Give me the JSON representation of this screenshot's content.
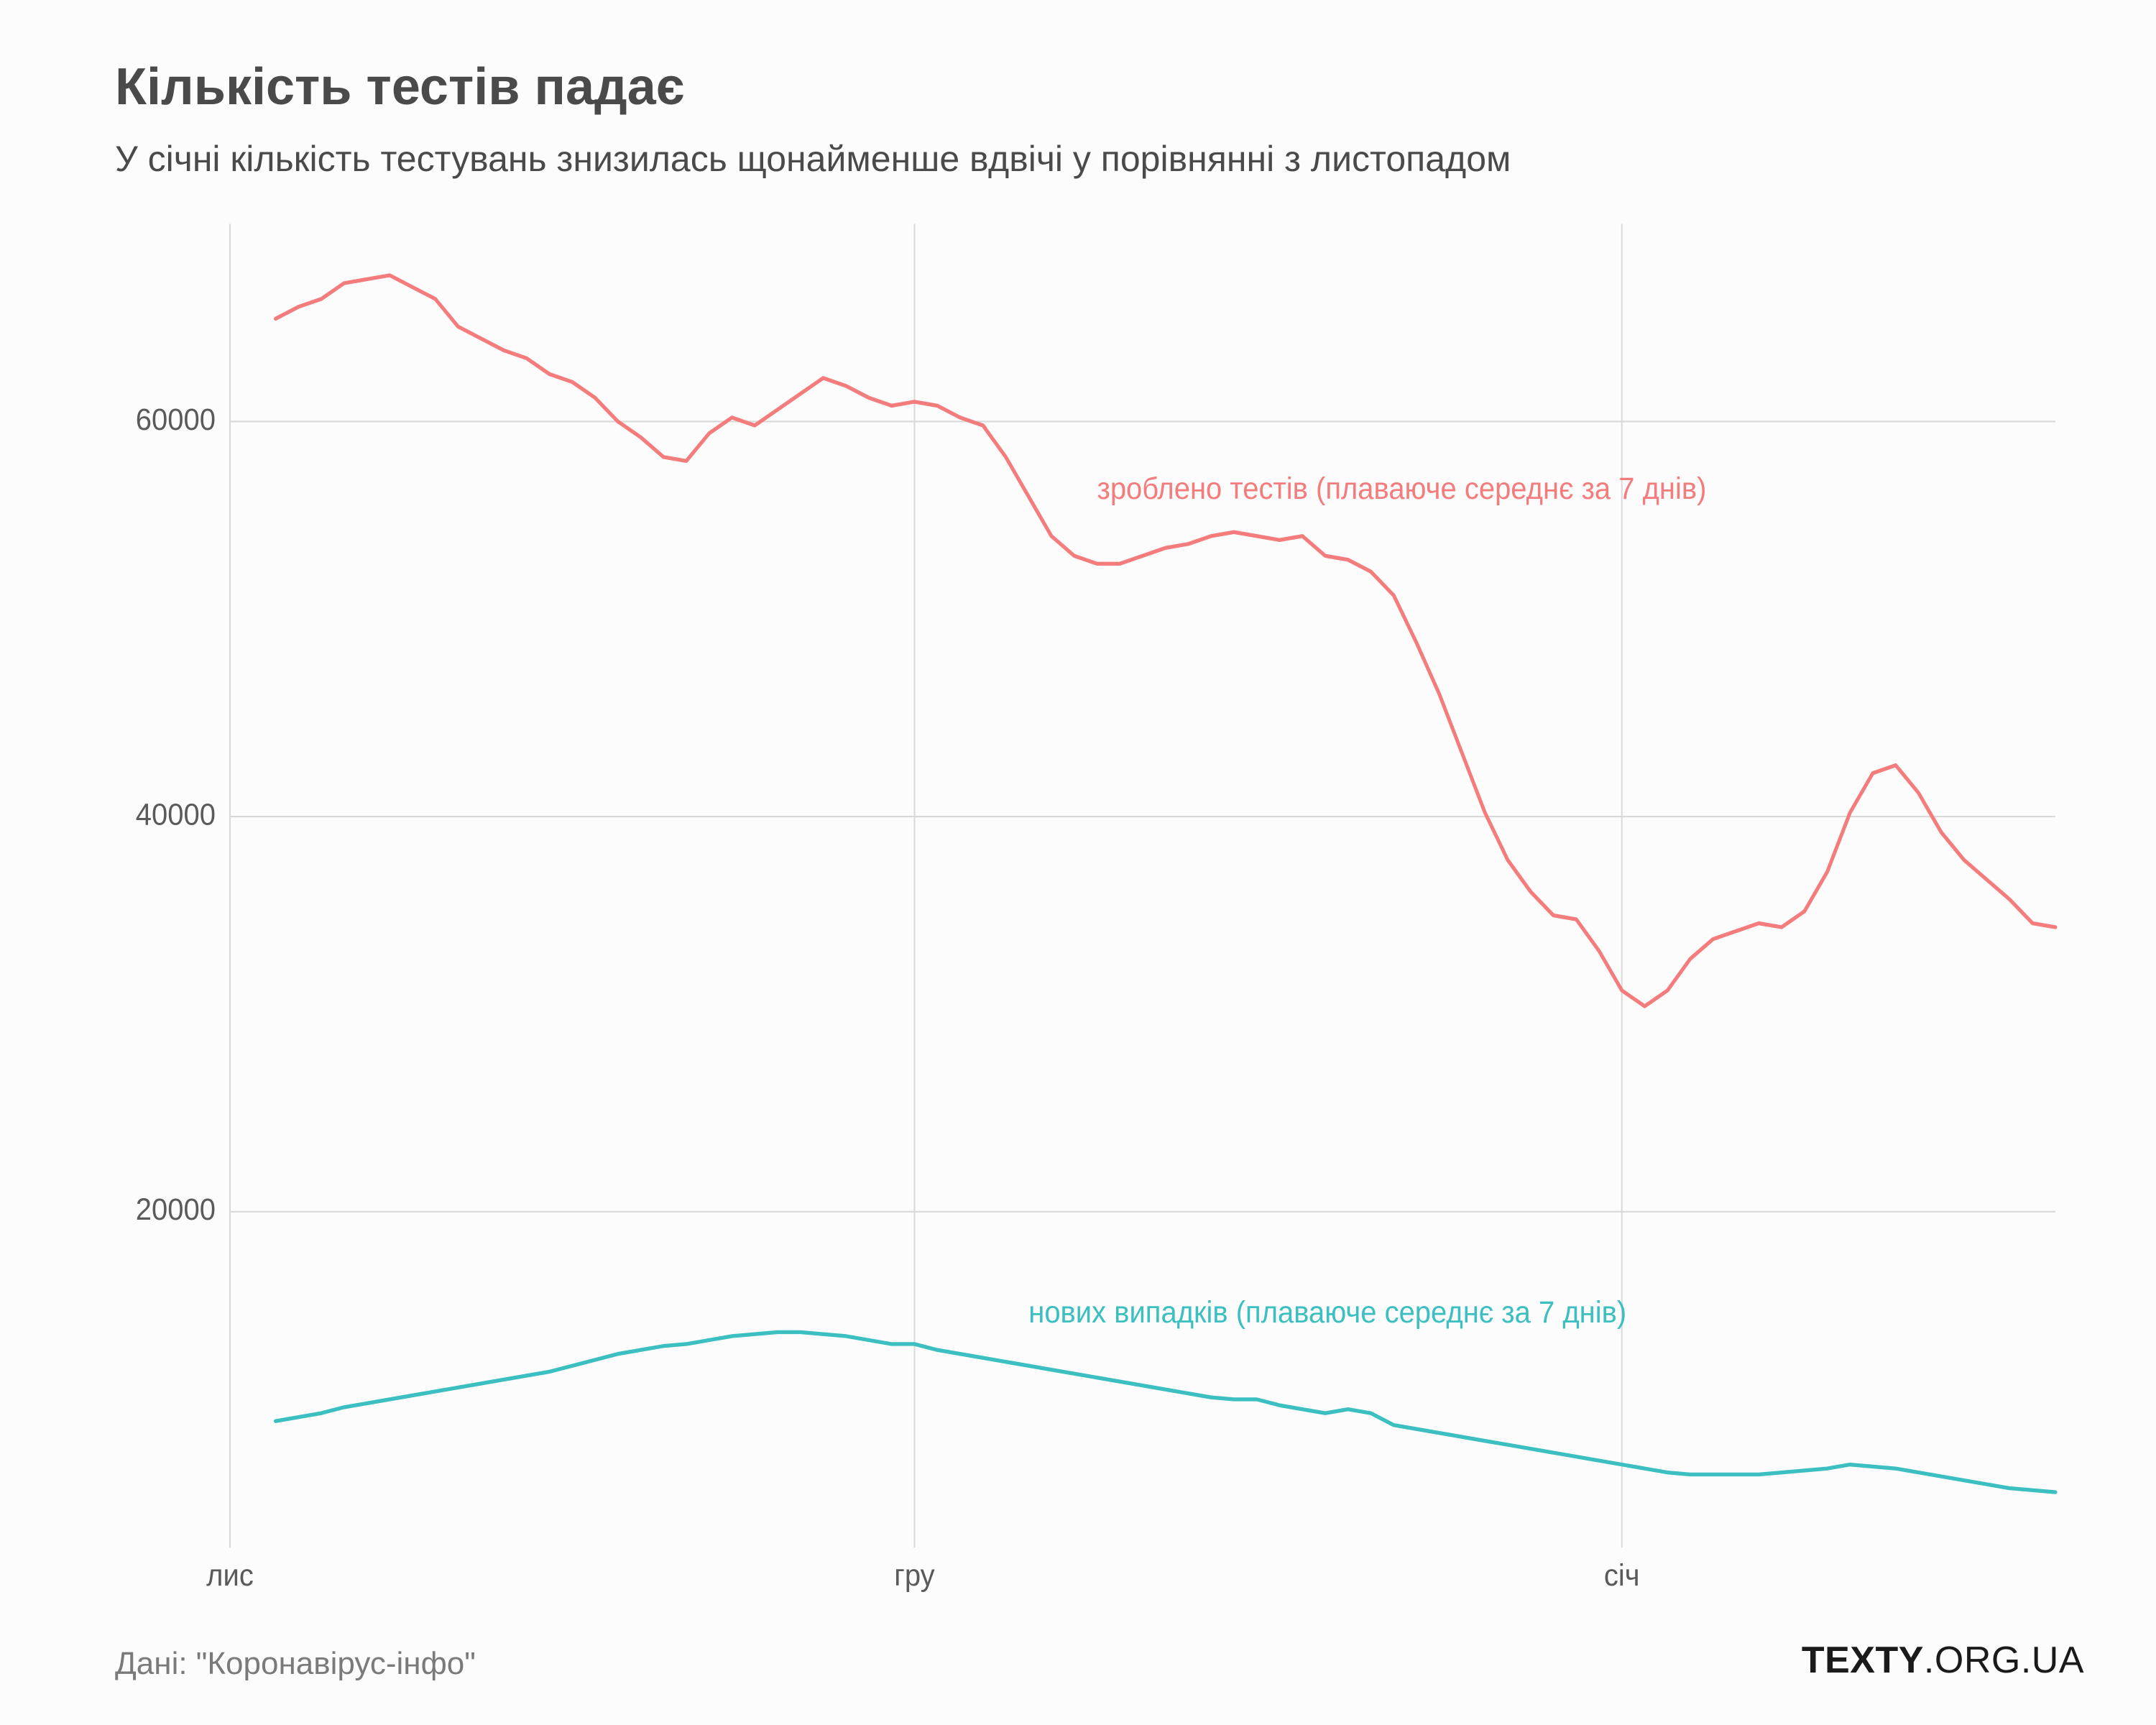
{
  "title": "Кількість тестів падає",
  "subtitle": "У січні кількість тестувань знизилась щонайменше вдвічі у порівнянні з листопадом",
  "source": "Дані: \"Коронавірус-інфо\"",
  "logo_bold": "TEXTY",
  "logo_thin": ".ORG.UA",
  "chart": {
    "type": "line",
    "background_color": "#fcfcfc",
    "grid_color": "#d9d9d9",
    "axis_text_color": "#5a5a5a",
    "title_fontsize": 72,
    "subtitle_fontsize": 50,
    "label_fontsize": 40,
    "line_width": 5,
    "ylim": [
      3000,
      70000
    ],
    "yticks": [
      20000,
      40000,
      60000
    ],
    "xlim": [
      0,
      80
    ],
    "xticks": [
      {
        "pos": 0,
        "label": "лис"
      },
      {
        "pos": 30,
        "label": "гру"
      },
      {
        "pos": 61,
        "label": "січ"
      }
    ],
    "series": [
      {
        "name": "tests",
        "color": "#f47c7c",
        "annotation": "зроблено тестів (плаваюче середнє за 7 днів)",
        "annotation_x": 38,
        "annotation_y": 56500,
        "annotation_anchor": "start",
        "data": [
          [
            2,
            65200
          ],
          [
            3,
            65800
          ],
          [
            4,
            66200
          ],
          [
            5,
            67000
          ],
          [
            6,
            67200
          ],
          [
            7,
            67400
          ],
          [
            8,
            66800
          ],
          [
            9,
            66200
          ],
          [
            10,
            64800
          ],
          [
            11,
            64200
          ],
          [
            12,
            63600
          ],
          [
            13,
            63200
          ],
          [
            14,
            62400
          ],
          [
            15,
            62000
          ],
          [
            16,
            61200
          ],
          [
            17,
            60000
          ],
          [
            18,
            59200
          ],
          [
            19,
            58200
          ],
          [
            20,
            58000
          ],
          [
            21,
            59400
          ],
          [
            22,
            60200
          ],
          [
            23,
            59800
          ],
          [
            24,
            60600
          ],
          [
            25,
            61400
          ],
          [
            26,
            62200
          ],
          [
            27,
            61800
          ],
          [
            28,
            61200
          ],
          [
            29,
            60800
          ],
          [
            30,
            61000
          ],
          [
            31,
            60800
          ],
          [
            32,
            60200
          ],
          [
            33,
            59800
          ],
          [
            34,
            58200
          ],
          [
            35,
            56200
          ],
          [
            36,
            54200
          ],
          [
            37,
            53200
          ],
          [
            38,
            52800
          ],
          [
            39,
            52800
          ],
          [
            40,
            53200
          ],
          [
            41,
            53600
          ],
          [
            42,
            53800
          ],
          [
            43,
            54200
          ],
          [
            44,
            54400
          ],
          [
            45,
            54200
          ],
          [
            46,
            54000
          ],
          [
            47,
            54200
          ],
          [
            48,
            53200
          ],
          [
            49,
            53000
          ],
          [
            50,
            52400
          ],
          [
            51,
            51200
          ],
          [
            52,
            48800
          ],
          [
            53,
            46200
          ],
          [
            54,
            43200
          ],
          [
            55,
            40200
          ],
          [
            56,
            37800
          ],
          [
            57,
            36200
          ],
          [
            58,
            35000
          ],
          [
            59,
            34800
          ],
          [
            60,
            33200
          ],
          [
            61,
            31200
          ],
          [
            62,
            30400
          ],
          [
            63,
            31200
          ],
          [
            64,
            32800
          ],
          [
            65,
            33800
          ],
          [
            66,
            34200
          ],
          [
            67,
            34600
          ],
          [
            68,
            34400
          ],
          [
            69,
            35200
          ],
          [
            70,
            37200
          ],
          [
            71,
            40200
          ],
          [
            72,
            42200
          ],
          [
            73,
            42600
          ],
          [
            74,
            41200
          ],
          [
            75,
            39200
          ],
          [
            76,
            37800
          ],
          [
            77,
            36800
          ],
          [
            78,
            35800
          ],
          [
            79,
            34600
          ],
          [
            80,
            34400
          ]
        ]
      },
      {
        "name": "cases",
        "color": "#3bbfc1",
        "annotation": "нових випадків (плаваюче середнє за 7 днів)",
        "annotation_x": 35,
        "annotation_y": 14800,
        "annotation_anchor": "start",
        "data": [
          [
            2,
            9400
          ],
          [
            3,
            9600
          ],
          [
            4,
            9800
          ],
          [
            5,
            10100
          ],
          [
            6,
            10300
          ],
          [
            7,
            10500
          ],
          [
            8,
            10700
          ],
          [
            9,
            10900
          ],
          [
            10,
            11100
          ],
          [
            11,
            11300
          ],
          [
            12,
            11500
          ],
          [
            13,
            11700
          ],
          [
            14,
            11900
          ],
          [
            15,
            12200
          ],
          [
            16,
            12500
          ],
          [
            17,
            12800
          ],
          [
            18,
            13000
          ],
          [
            19,
            13200
          ],
          [
            20,
            13300
          ],
          [
            21,
            13500
          ],
          [
            22,
            13700
          ],
          [
            23,
            13800
          ],
          [
            24,
            13900
          ],
          [
            25,
            13900
          ],
          [
            26,
            13800
          ],
          [
            27,
            13700
          ],
          [
            28,
            13500
          ],
          [
            29,
            13300
          ],
          [
            30,
            13300
          ],
          [
            31,
            13000
          ],
          [
            32,
            12800
          ],
          [
            33,
            12600
          ],
          [
            34,
            12400
          ],
          [
            35,
            12200
          ],
          [
            36,
            12000
          ],
          [
            37,
            11800
          ],
          [
            38,
            11600
          ],
          [
            39,
            11400
          ],
          [
            40,
            11200
          ],
          [
            41,
            11000
          ],
          [
            42,
            10800
          ],
          [
            43,
            10600
          ],
          [
            44,
            10500
          ],
          [
            45,
            10500
          ],
          [
            46,
            10200
          ],
          [
            47,
            10000
          ],
          [
            48,
            9800
          ],
          [
            49,
            10000
          ],
          [
            50,
            9800
          ],
          [
            51,
            9200
          ],
          [
            52,
            9000
          ],
          [
            53,
            8800
          ],
          [
            54,
            8600
          ],
          [
            55,
            8400
          ],
          [
            56,
            8200
          ],
          [
            57,
            8000
          ],
          [
            58,
            7800
          ],
          [
            59,
            7600
          ],
          [
            60,
            7400
          ],
          [
            61,
            7200
          ],
          [
            62,
            7000
          ],
          [
            63,
            6800
          ],
          [
            64,
            6700
          ],
          [
            65,
            6700
          ],
          [
            66,
            6700
          ],
          [
            67,
            6700
          ],
          [
            68,
            6800
          ],
          [
            69,
            6900
          ],
          [
            70,
            7000
          ],
          [
            71,
            7200
          ],
          [
            72,
            7100
          ],
          [
            73,
            7000
          ],
          [
            74,
            6800
          ],
          [
            75,
            6600
          ],
          [
            76,
            6400
          ],
          [
            77,
            6200
          ],
          [
            78,
            6000
          ],
          [
            79,
            5900
          ],
          [
            80,
            5800
          ]
        ]
      }
    ]
  }
}
